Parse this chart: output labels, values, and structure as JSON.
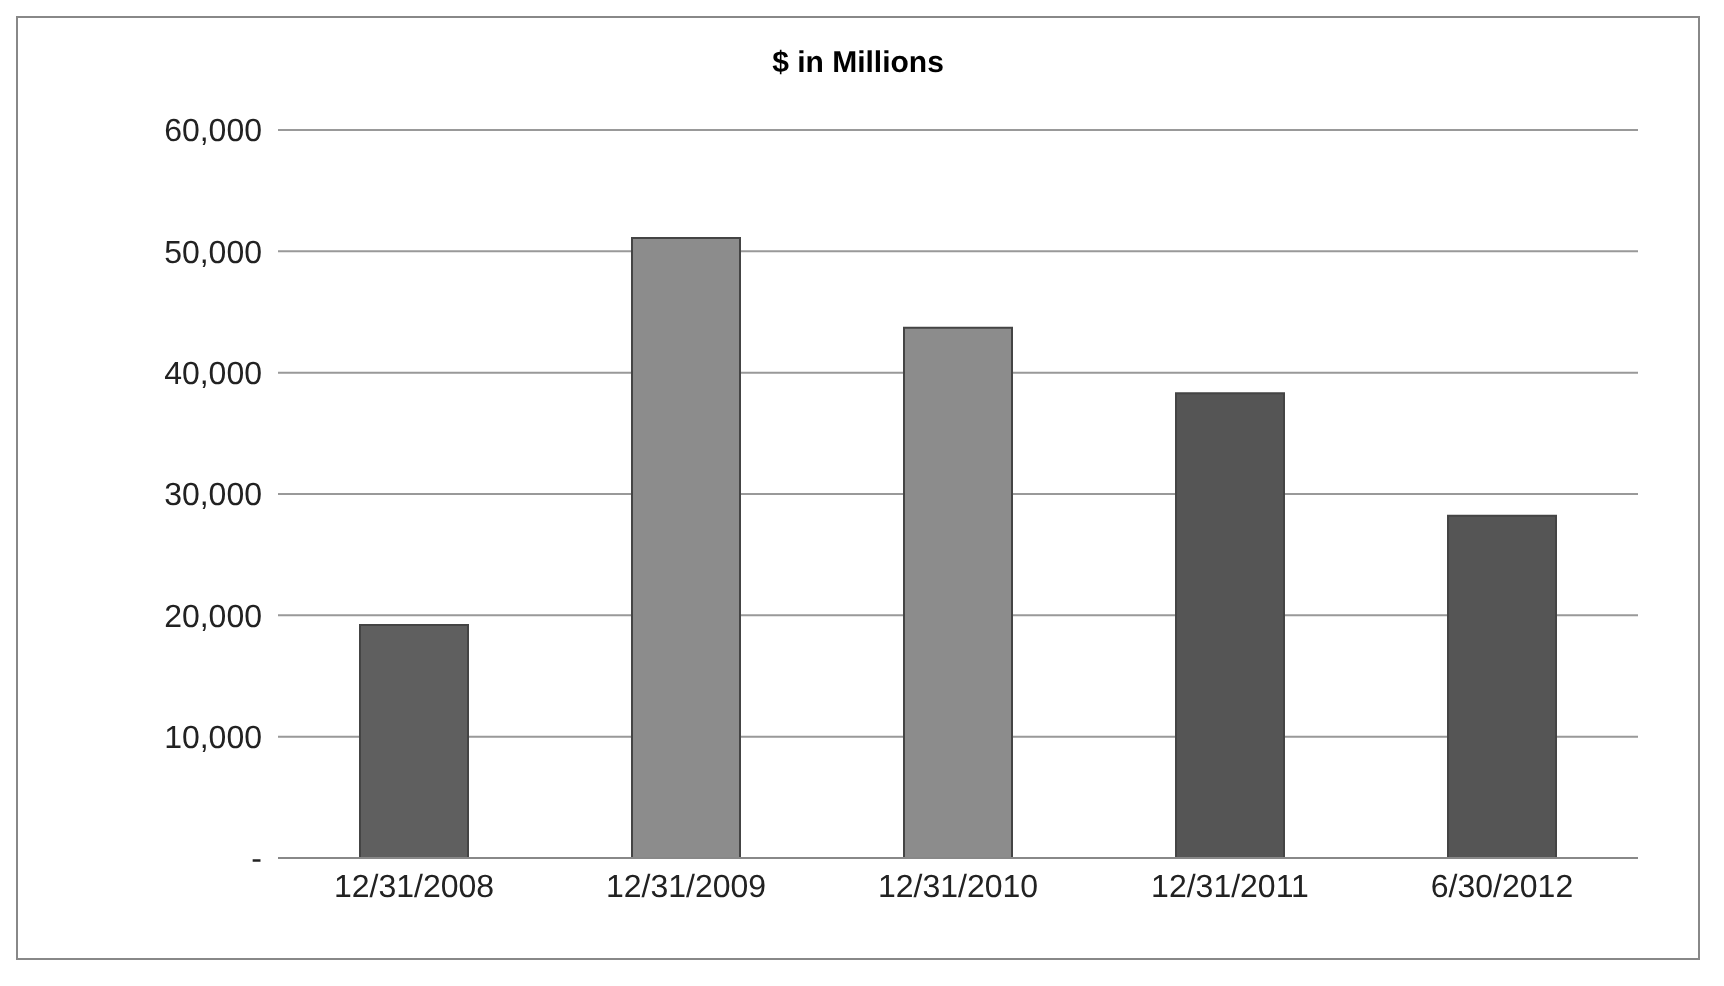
{
  "chart_data": {
    "type": "bar",
    "title": "$ in Millions",
    "categories": [
      "12/31/2008",
      "12/31/2009",
      "12/31/2010",
      "12/31/2011",
      "6/30/2012"
    ],
    "values": [
      19200,
      51100,
      43700,
      38300,
      28200
    ],
    "colors": [
      "#5f5f5f",
      "#8c8c8c",
      "#8c8c8c",
      "#555555",
      "#555555"
    ],
    "ylim": [
      0,
      60000
    ],
    "yticks": [
      {
        "value": 0,
        "label": "-"
      },
      {
        "value": 10000,
        "label": "10,000"
      },
      {
        "value": 20000,
        "label": "20,000"
      },
      {
        "value": 30000,
        "label": "30,000"
      },
      {
        "value": 40000,
        "label": "40,000"
      },
      {
        "value": 50000,
        "label": "50,000"
      },
      {
        "value": 60000,
        "label": "60,000"
      }
    ],
    "grid": "y"
  }
}
